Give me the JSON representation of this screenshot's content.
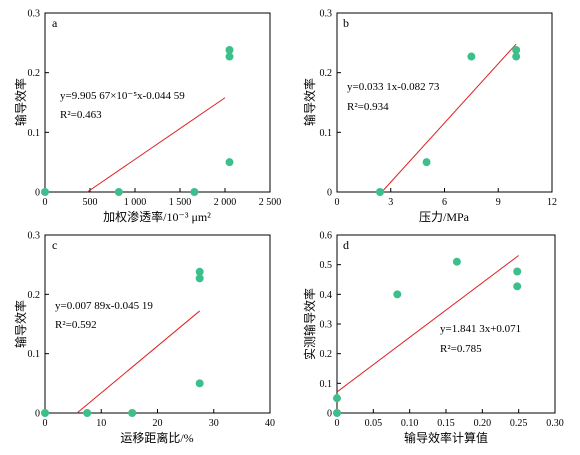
{
  "chart_data": [
    {
      "type": "scatter",
      "panel": "a",
      "xlabel": "加权渗透率/10⁻³ μm²",
      "ylabel": "输导效率",
      "xlim": [
        0,
        2500
      ],
      "ylim": [
        0,
        0.3
      ],
      "xticks": [
        0,
        500,
        1000,
        1500,
        2000,
        2500
      ],
      "xtick_labels": [
        "0",
        "500",
        "1 000",
        "1 500",
        "2 000",
        "2 500"
      ],
      "yticks": [
        0,
        0.1,
        0.2,
        0.3
      ],
      "ytick_labels": [
        "0",
        "0.1",
        "0.2",
        "0.3"
      ],
      "points": [
        [
          0,
          0
        ],
        [
          820,
          0
        ],
        [
          1660,
          0
        ],
        [
          2050,
          0.05
        ],
        [
          2050,
          0.227
        ],
        [
          2050,
          0.238
        ]
      ],
      "fit_line": [
        [
          470,
          0
        ],
        [
          2000,
          0.158
        ]
      ],
      "equation": "y=9.905 67×10⁻⁵x-0.044 59",
      "r2": "R²=0.463"
    },
    {
      "type": "scatter",
      "panel": "b",
      "xlabel": "压力/MPa",
      "ylabel": "输导效率",
      "xlim": [
        0,
        12
      ],
      "ylim": [
        0,
        0.3
      ],
      "xticks": [
        0,
        3,
        6,
        9,
        12
      ],
      "xtick_labels": [
        "0",
        "3",
        "6",
        "9",
        "12"
      ],
      "yticks": [
        0,
        0.1,
        0.2,
        0.3
      ],
      "ytick_labels": [
        "0",
        "0.1",
        "0.2",
        "0.3"
      ],
      "points": [
        [
          2.4,
          0
        ],
        [
          5,
          0.05
        ],
        [
          7.5,
          0.227
        ],
        [
          10,
          0.227
        ],
        [
          10,
          0.238
        ]
      ],
      "fit_line": [
        [
          2.5,
          0
        ],
        [
          10,
          0.248
        ]
      ],
      "equation": "y=0.033 1x-0.082 73",
      "r2": "R²=0.934"
    },
    {
      "type": "scatter",
      "panel": "c",
      "xlabel": "运移距离比/%",
      "ylabel": "输导效率",
      "xlim": [
        0,
        40
      ],
      "ylim": [
        0,
        0.3
      ],
      "xticks": [
        0,
        10,
        20,
        30,
        40
      ],
      "xtick_labels": [
        "0",
        "10",
        "20",
        "30",
        "40"
      ],
      "yticks": [
        0,
        0.1,
        0.2,
        0.3
      ],
      "ytick_labels": [
        "0",
        "0.1",
        "0.2",
        "0.3"
      ],
      "points": [
        [
          0,
          0
        ],
        [
          7.5,
          0
        ],
        [
          15.5,
          0
        ],
        [
          27.5,
          0.05
        ],
        [
          27.5,
          0.227
        ],
        [
          27.5,
          0.238
        ]
      ],
      "fit_line": [
        [
          5.7,
          0
        ],
        [
          27.5,
          0.172
        ]
      ],
      "equation": "y=0.007 89x-0.045 19",
      "r2": "R²=0.592"
    },
    {
      "type": "scatter",
      "panel": "d",
      "xlabel": "输导效率计算值",
      "ylabel": "实测输导效率",
      "xlim": [
        0,
        0.3
      ],
      "ylim": [
        0,
        0.6
      ],
      "xticks": [
        0,
        0.05,
        0.1,
        0.15,
        0.2,
        0.25,
        0.3
      ],
      "xtick_labels": [
        "0",
        "0.05",
        "0.10",
        "0.15",
        "0.20",
        "0.25",
        "0.30"
      ],
      "yticks": [
        0,
        0.1,
        0.2,
        0.3,
        0.4,
        0.5,
        0.6
      ],
      "ytick_labels": [
        "0",
        "0.1",
        "0.2",
        "0.3",
        "0.4",
        "0.5",
        "0.6"
      ],
      "points": [
        [
          0,
          0.05
        ],
        [
          0,
          0
        ],
        [
          0.083,
          0.4
        ],
        [
          0.165,
          0.51
        ],
        [
          0.248,
          0.477
        ],
        [
          0.248,
          0.427
        ]
      ],
      "fit_line": [
        [
          0,
          0.071
        ],
        [
          0.25,
          0.531
        ]
      ],
      "equation": "y=1.841 3x+0.071",
      "r2": "R²=0.785"
    }
  ],
  "colors": {
    "point": "#3dbf8c",
    "fit": "#e02020",
    "axis": "#000000"
  }
}
